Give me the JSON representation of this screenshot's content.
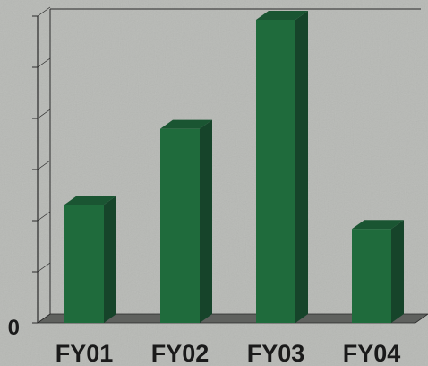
{
  "chart_data": {
    "type": "bar",
    "title": "",
    "xlabel": "",
    "ylabel": "",
    "categories": [
      "FY01",
      "FY02",
      "FY03",
      "FY04"
    ],
    "values": [
      39,
      64,
      100,
      31
    ],
    "ylim": [
      0,
      100
    ],
    "y_tick_labels": [
      "0"
    ],
    "grid": false,
    "legend": "none",
    "style": "3d",
    "colors": {
      "bar_front": "#1f6b3c",
      "bar_side": "#16442a",
      "bar_top": "#1a5532",
      "floor": "#5f615e",
      "axis": "#2a2a2a",
      "background": "#b7b9b5"
    }
  }
}
